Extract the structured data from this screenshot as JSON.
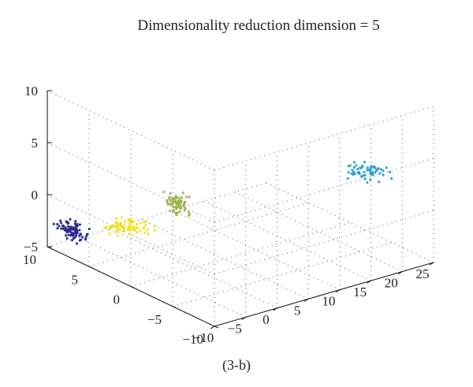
{
  "chart_data": {
    "type": "scatter",
    "title": "Dimensionality reduction dimension = 5",
    "caption": "(3-b)",
    "projection": "3d",
    "grid": true,
    "xlim": [
      -10,
      25
    ],
    "ylim": [
      -10,
      10
    ],
    "zlim": [
      -5,
      10
    ],
    "x_ticks": [
      "−10",
      "−5",
      "0",
      "5",
      "10",
      "15",
      "20",
      "25"
    ],
    "y_ticks": [
      "−10",
      "−5",
      "0",
      "5",
      "10"
    ],
    "z_ticks": [
      "−5",
      "0",
      "5",
      "10"
    ],
    "series": [
      {
        "color": "#2b2a8a",
        "center": [
          -7.5,
          9,
          -3.5
        ],
        "spread": [
          1.2,
          1.2,
          0.7
        ],
        "count": 90
      },
      {
        "color": "#9ab54a",
        "center": [
          -8,
          -4,
          4
        ],
        "spread": [
          1.1,
          1.1,
          0.7
        ],
        "count": 70
      },
      {
        "color": "#2a9fd6",
        "center": [
          22,
          -4,
          2
        ],
        "spread": [
          1.8,
          1.3,
          0.6
        ],
        "count": 60
      },
      {
        "color": "#f0e21a",
        "center": [
          0,
          8,
          -4
        ],
        "spread": [
          2.0,
          1.3,
          0.5
        ],
        "count": 80
      }
    ]
  }
}
